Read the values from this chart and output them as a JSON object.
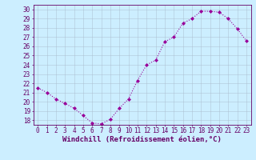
{
  "x": [
    0,
    1,
    2,
    3,
    4,
    5,
    6,
    7,
    8,
    9,
    10,
    11,
    12,
    13,
    14,
    15,
    16,
    17,
    18,
    19,
    20,
    21,
    22,
    23
  ],
  "y": [
    21.5,
    21.0,
    20.3,
    19.8,
    19.3,
    18.5,
    17.7,
    17.6,
    18.1,
    19.3,
    20.3,
    22.3,
    24.0,
    24.5,
    26.5,
    27.0,
    28.5,
    29.0,
    29.8,
    29.8,
    29.7,
    29.0,
    27.9,
    26.6
  ],
  "line_color": "#990099",
  "marker": "D",
  "marker_size": 2,
  "bg_color": "#cceeff",
  "grid_color": "#aabbcc",
  "xlabel": "Windchill (Refroidissement éolien,°C)",
  "ylim": [
    17.5,
    30.5
  ],
  "xlim": [
    -0.5,
    23.5
  ],
  "yticks": [
    18,
    19,
    20,
    21,
    22,
    23,
    24,
    25,
    26,
    27,
    28,
    29,
    30
  ],
  "xtick_labels": [
    "0",
    "1",
    "2",
    "3",
    "4",
    "5",
    "6",
    "7",
    "8",
    "9",
    "10",
    "11",
    "12",
    "13",
    "14",
    "15",
    "16",
    "17",
    "18",
    "19",
    "20",
    "21",
    "22",
    "23"
  ],
  "label_color": "#660066",
  "tick_color": "#660066",
  "spine_color": "#660066",
  "xlabel_fontsize": 6.5,
  "tick_fontsize": 5.5
}
